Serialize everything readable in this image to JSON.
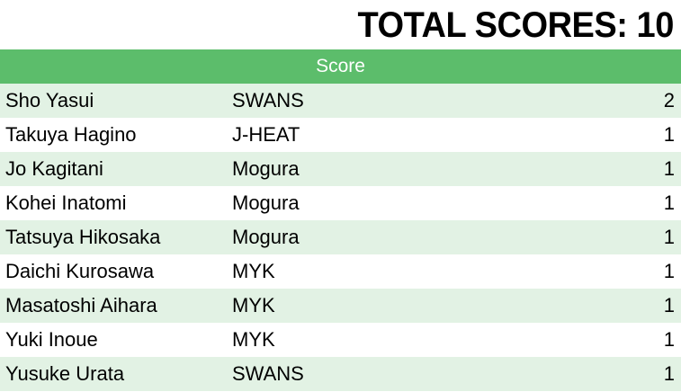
{
  "title": "TOTAL SCORES: 10",
  "header": "Score",
  "colors": {
    "header_bg": "#5cbd6b",
    "row_alt": "#e2f2e4"
  },
  "rows": [
    {
      "name": "Sho Yasui",
      "team": "SWANS",
      "score": "2"
    },
    {
      "name": "Takuya Hagino",
      "team": "J-HEAT",
      "score": "1"
    },
    {
      "name": "Jo Kagitani",
      "team": "Mogura",
      "score": "1"
    },
    {
      "name": "Kohei Inatomi",
      "team": "Mogura",
      "score": "1"
    },
    {
      "name": "Tatsuya Hikosaka",
      "team": "Mogura",
      "score": "1"
    },
    {
      "name": "Daichi Kurosawa",
      "team": "MYK",
      "score": "1"
    },
    {
      "name": "Masatoshi Aihara",
      "team": "MYK",
      "score": "1"
    },
    {
      "name": "Yuki Inoue",
      "team": "MYK",
      "score": "1"
    },
    {
      "name": "Yusuke Urata",
      "team": "SWANS",
      "score": "1"
    }
  ]
}
